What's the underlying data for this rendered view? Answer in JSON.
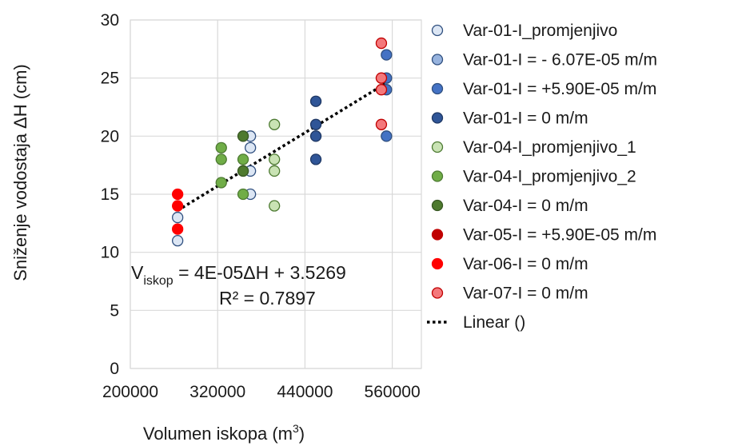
{
  "chart_data": {
    "type": "scatter",
    "xlabel": "Volumen iskopa (m",
    "xlabel_sup": "3",
    "xlabel_end": ")",
    "ylabel": "Sniženje vodostaja ΔH (cm)",
    "xlim": [
      200000,
      600000
    ],
    "ylim": [
      0,
      30
    ],
    "x_ticks": [
      "200000",
      "320000",
      "440000",
      "560000"
    ],
    "y_ticks": [
      "0",
      "5",
      "10",
      "15",
      "20",
      "25",
      "30"
    ],
    "grid": true,
    "legend_position": "right",
    "series": [
      {
        "name": "Var-01-I_promjenjivo",
        "fill": "#dce6f4",
        "stroke": "#2f4f7f",
        "points": [
          [
            265000,
            11
          ],
          [
            265000,
            13
          ],
          [
            365000,
            20
          ],
          [
            365000,
            19
          ],
          [
            365000,
            17
          ],
          [
            365000,
            15
          ]
        ]
      },
      {
        "name": "Var-01-I = - 6.07E-05 m/m",
        "fill": "#97b3de",
        "stroke": "#2f4f7f",
        "points": []
      },
      {
        "name": "Var-01-I = +5.90E-05 m/m",
        "fill": "#4472c4",
        "stroke": "#2f4f7f",
        "points": [
          [
            552000,
            27
          ],
          [
            552000,
            25
          ],
          [
            552000,
            24
          ],
          [
            552000,
            20
          ]
        ]
      },
      {
        "name": "Var-01-I = 0 m/m",
        "fill": "#2f5597",
        "stroke": "#1f3864",
        "points": [
          [
            455000,
            23
          ],
          [
            455000,
            21
          ],
          [
            455000,
            20
          ],
          [
            455000,
            18
          ]
        ]
      },
      {
        "name": "Var-04-I_promjenjivo_1",
        "fill": "#c9e3b4",
        "stroke": "#4d7a32",
        "points": [
          [
            398000,
            21
          ],
          [
            398000,
            18
          ],
          [
            398000,
            17
          ],
          [
            398000,
            14
          ]
        ]
      },
      {
        "name": "Var-04-I_promjenjivo_2",
        "fill": "#70ad47",
        "stroke": "#4d7a32",
        "points": [
          [
            325000,
            19
          ],
          [
            325000,
            18
          ],
          [
            325000,
            16
          ],
          [
            355000,
            18
          ],
          [
            355000,
            17
          ],
          [
            355000,
            15
          ]
        ]
      },
      {
        "name": "Var-04-I = 0 m/m",
        "fill": "#4e7a2e",
        "stroke": "#385723",
        "points": [
          [
            355000,
            20
          ],
          [
            355000,
            17
          ]
        ]
      },
      {
        "name": "Var-05-I = +5.90E-05 m/m",
        "fill": "#c00000",
        "stroke": "#c00000",
        "points": []
      },
      {
        "name": "Var-06-I = 0 m/m",
        "fill": "#ff0000",
        "stroke": "#ff0000",
        "points": [
          [
            265000,
            15
          ],
          [
            265000,
            14
          ],
          [
            265000,
            12
          ]
        ]
      },
      {
        "name": "Var-07-I = 0 m/m",
        "fill": "#f4787b",
        "stroke": "#c00000",
        "points": [
          [
            545000,
            28
          ],
          [
            545000,
            25
          ],
          [
            545000,
            24
          ],
          [
            545000,
            21
          ]
        ]
      }
    ],
    "trendline": {
      "name": "Linear ()",
      "from": [
        265000,
        13.6
      ],
      "to": [
        550000,
        24.5
      ],
      "color": "#000000"
    },
    "equation": {
      "prefix": "V",
      "sub": "iskop",
      "rest": " = 4E-05ΔH + 3.5269",
      "r2": "R² = 0.7897"
    }
  }
}
